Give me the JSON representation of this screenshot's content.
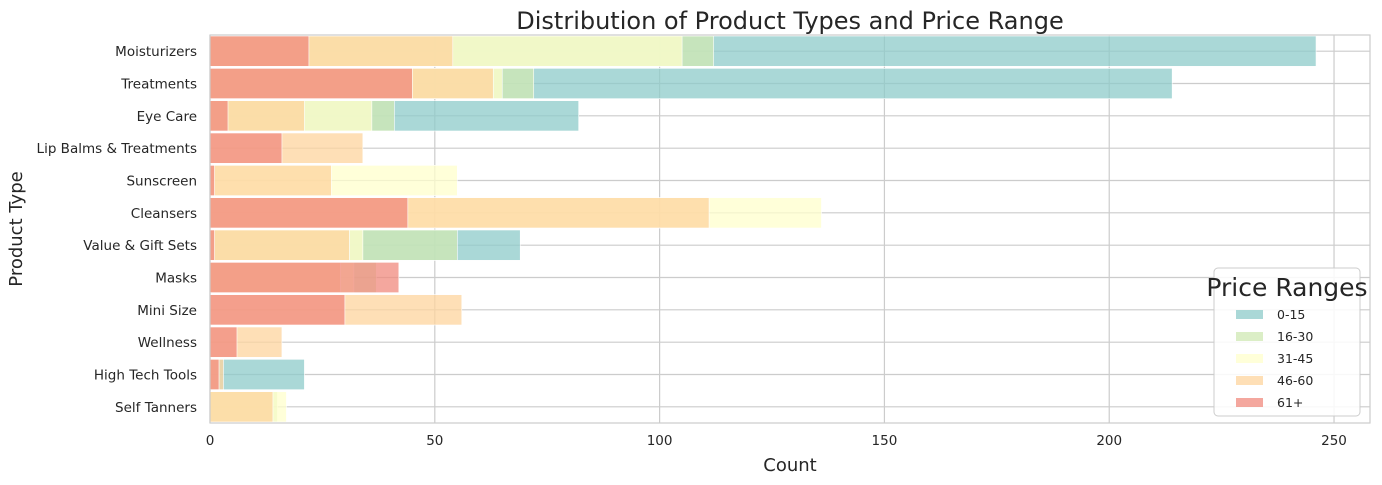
{
  "chart_data": {
    "type": "bar",
    "orientation": "horizontal",
    "stacked": false,
    "overlapping": true,
    "title": "Distribution of Product Types and Price Range",
    "xlabel": "Count",
    "ylabel": "Product Type",
    "xlim": [
      0,
      258
    ],
    "xticks": [
      0,
      50,
      100,
      150,
      200,
      250
    ],
    "grid": true,
    "categories": [
      "Moisturizers",
      "Treatments",
      "Eye Care",
      "Lip Balms & Treatments",
      "Sunscreen",
      "Cleansers",
      "Value & Gift Sets",
      "Masks",
      "Mini Size",
      "Wellness",
      "High Tech Tools",
      "Self Tanners"
    ],
    "series": [
      {
        "name": "0-15",
        "color": "#8ecbc9",
        "values": [
          246,
          214,
          82,
          0,
          0,
          0,
          69,
          0,
          0,
          0,
          21,
          0
        ]
      },
      {
        "name": "16-30",
        "color": "#cfe8b3",
        "values": [
          112,
          72,
          41,
          0,
          0,
          0,
          55,
          37,
          0,
          0,
          0,
          15
        ]
      },
      {
        "name": "31-45",
        "color": "#ffffcc",
        "values": [
          105,
          65,
          36,
          0,
          55,
          136,
          34,
          32,
          0,
          0,
          2,
          17
        ]
      },
      {
        "name": "46-60",
        "color": "#fdd49e",
        "values": [
          54,
          63,
          21,
          34,
          27,
          111,
          31,
          29,
          56,
          16,
          3,
          14
        ]
      },
      {
        "name": "61+",
        "color": "#f08a7e",
        "values": [
          22,
          45,
          4,
          16,
          1,
          44,
          1,
          42,
          30,
          6,
          2,
          0
        ]
      }
    ],
    "legend": {
      "title": "Price Ranges",
      "position": "bottom-right"
    }
  }
}
